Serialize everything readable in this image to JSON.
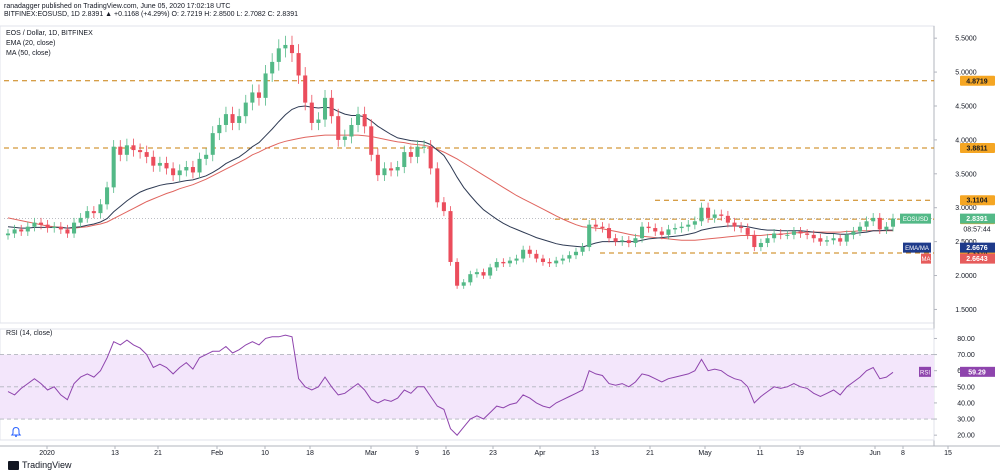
{
  "header": {
    "author": "ranadagger",
    "published": "published on TradingView.com, June 05, 2020 17:02:18 UTC",
    "symbol_line": "BITFINEX:EOSUSD, 1D",
    "quote": "2.8391 ▲ +0.1168 (+4.29%) O: 2.7219 H: 2.8500 L: 2.7082 C: 2.8391"
  },
  "legend": {
    "title": "EOS / Dollar, 1D, BITFINEX",
    "ema": "EMA (20, close)",
    "ma": "MA (50, close)",
    "rsi": "RSI (14, close)"
  },
  "footer": {
    "brand": "TradingView"
  },
  "colors": {
    "up": "#53b987",
    "down": "#eb4d5c",
    "ema": "#2f3b54",
    "ma": "#e0655f",
    "rsi": "#8e44ad",
    "rsi_band": "#f3e6fb",
    "level": "#c87f0a",
    "price_badge": "#53b987",
    "ema_badge": "#1e3a8a",
    "ma_badge": "#e65c5c",
    "level_badge": "#f5a623"
  },
  "chart_data": [
    {
      "type": "candlestick",
      "title": "EOS / Dollar, 1D, BITFINEX",
      "x_ticks": [
        "2020",
        "13",
        "21",
        "Feb",
        "10",
        "18",
        "Mar",
        "9",
        "16",
        "23",
        "Apr",
        "13",
        "21",
        "May",
        "11",
        "19",
        "Jun",
        "8",
        "15"
      ],
      "y_ticks": [
        "1.5000",
        "2.0000",
        "2.5000",
        "3.0000",
        "3.5000",
        "4.0000",
        "4.5000",
        "5.0000",
        "5.5000"
      ],
      "ylim": [
        1.3,
        5.65
      ],
      "horizontal_levels": [
        {
          "label": "4.8719",
          "value": 4.8719
        },
        {
          "label": "3.8811",
          "value": 3.8811
        },
        {
          "label": "3.1104",
          "value": 3.1104
        },
        {
          "label": "2.8319",
          "value": 2.8319
        },
        {
          "label": "2.3314",
          "value": 2.3314
        }
      ],
      "price_labels": [
        {
          "label": "EOSUSD",
          "value": "2.8391",
          "level": 2.8391,
          "sub": "08:57:44"
        },
        {
          "label": "EMA/MA",
          "value": "2.6676",
          "level": 2.6676
        },
        {
          "label": "MA",
          "value": "2.6643",
          "level": 2.6643
        }
      ],
      "series": [
        {
          "name": "EOS / Dollar",
          "values": [
            2.62,
            2.68,
            2.65,
            2.72,
            2.78,
            2.75,
            2.7,
            2.72,
            2.68,
            2.62,
            2.78,
            2.85,
            2.95,
            2.92,
            3.05,
            3.3,
            3.9,
            3.78,
            3.92,
            3.85,
            3.82,
            3.75,
            3.62,
            3.66,
            3.58,
            3.48,
            3.55,
            3.6,
            3.52,
            3.72,
            3.78,
            4.1,
            4.22,
            4.38,
            4.25,
            4.35,
            4.55,
            4.7,
            4.62,
            4.98,
            5.15,
            5.35,
            5.4,
            5.28,
            4.95,
            4.55,
            4.25,
            4.3,
            4.62,
            4.35,
            4.0,
            4.05,
            4.22,
            4.38,
            4.2,
            3.78,
            3.48,
            3.58,
            3.55,
            3.6,
            3.82,
            3.75,
            3.9,
            3.9,
            3.58,
            3.08,
            2.95,
            2.2,
            1.85,
            1.9,
            2.02,
            2.05,
            2.0,
            2.12,
            2.2,
            2.18,
            2.22,
            2.25,
            2.38,
            2.32,
            2.25,
            2.2,
            2.18,
            2.22,
            2.25,
            2.3,
            2.35,
            2.42,
            2.75,
            2.72,
            2.7,
            2.55,
            2.5,
            2.52,
            2.48,
            2.55,
            2.72,
            2.7,
            2.65,
            2.6,
            2.68,
            2.7,
            2.72,
            2.75,
            2.8,
            3.0,
            2.85,
            2.9,
            2.88,
            2.78,
            2.72,
            2.7,
            2.6,
            2.42,
            2.48,
            2.55,
            2.62,
            2.6,
            2.6,
            2.65,
            2.62,
            2.6,
            2.55,
            2.5,
            2.52,
            2.55,
            2.5,
            2.6,
            2.65,
            2.72,
            2.8,
            2.85,
            2.68,
            2.72,
            2.84
          ]
        },
        {
          "name": "EMA (20, close)",
          "values": [
            2.72,
            2.71,
            2.7,
            2.7,
            2.71,
            2.71,
            2.71,
            2.71,
            2.71,
            2.7,
            2.71,
            2.72,
            2.74,
            2.76,
            2.79,
            2.84,
            2.94,
            3.02,
            3.1,
            3.17,
            3.23,
            3.27,
            3.3,
            3.33,
            3.35,
            3.36,
            3.38,
            3.4,
            3.41,
            3.44,
            3.47,
            3.52,
            3.58,
            3.65,
            3.7,
            3.75,
            3.82,
            3.9,
            3.96,
            4.06,
            4.16,
            4.27,
            4.37,
            4.45,
            4.49,
            4.5,
            4.48,
            4.47,
            4.48,
            4.47,
            4.42,
            4.38,
            4.36,
            4.36,
            4.34,
            4.28,
            4.2,
            4.14,
            4.08,
            4.03,
            4.01,
            3.99,
            3.98,
            3.97,
            3.93,
            3.85,
            3.77,
            3.62,
            3.45,
            3.3,
            3.18,
            3.07,
            2.97,
            2.9,
            2.83,
            2.77,
            2.72,
            2.68,
            2.64,
            2.6,
            2.56,
            2.53,
            2.5,
            2.47,
            2.45,
            2.44,
            2.43,
            2.42,
            2.45,
            2.48,
            2.5,
            2.5,
            2.5,
            2.5,
            2.5,
            2.5,
            2.52,
            2.54,
            2.55,
            2.56,
            2.57,
            2.58,
            2.59,
            2.61,
            2.63,
            2.67,
            2.69,
            2.71,
            2.72,
            2.73,
            2.73,
            2.73,
            2.72,
            2.7,
            2.68,
            2.67,
            2.67,
            2.66,
            2.66,
            2.66,
            2.66,
            2.65,
            2.64,
            2.63,
            2.62,
            2.62,
            2.61,
            2.61,
            2.62,
            2.63,
            2.64,
            2.66,
            2.66,
            2.67,
            2.67
          ]
        },
        {
          "name": "MA (50, close)",
          "values": [
            2.85,
            2.83,
            2.81,
            2.79,
            2.77,
            2.75,
            2.73,
            2.72,
            2.71,
            2.7,
            2.7,
            2.71,
            2.72,
            2.74,
            2.76,
            2.79,
            2.84,
            2.89,
            2.94,
            2.99,
            3.04,
            3.09,
            3.13,
            3.17,
            3.21,
            3.24,
            3.28,
            3.31,
            3.34,
            3.38,
            3.42,
            3.47,
            3.52,
            3.57,
            3.62,
            3.67,
            3.72,
            3.78,
            3.82,
            3.87,
            3.91,
            3.95,
            3.98,
            4.0,
            4.02,
            4.04,
            4.05,
            4.06,
            4.07,
            4.07,
            4.07,
            4.07,
            4.07,
            4.07,
            4.06,
            4.05,
            4.03,
            4.01,
            3.99,
            3.97,
            3.96,
            3.94,
            3.93,
            3.92,
            3.9,
            3.86,
            3.82,
            3.77,
            3.72,
            3.66,
            3.6,
            3.54,
            3.48,
            3.42,
            3.36,
            3.3,
            3.24,
            3.18,
            3.13,
            3.08,
            3.03,
            2.98,
            2.93,
            2.88,
            2.83,
            2.79,
            2.75,
            2.72,
            2.71,
            2.7,
            2.69,
            2.67,
            2.65,
            2.63,
            2.61,
            2.59,
            2.58,
            2.57,
            2.56,
            2.55,
            2.54,
            2.53,
            2.52,
            2.52,
            2.52,
            2.53,
            2.54,
            2.55,
            2.56,
            2.57,
            2.58,
            2.59,
            2.59,
            2.59,
            2.59,
            2.6,
            2.61,
            2.61,
            2.62,
            2.63,
            2.63,
            2.64,
            2.64,
            2.64,
            2.64,
            2.64,
            2.64,
            2.65,
            2.65,
            2.66,
            2.66,
            2.66,
            2.66,
            2.66,
            2.66
          ]
        }
      ]
    },
    {
      "type": "line",
      "title": "RSI (14, close)",
      "y_ticks": [
        "20.00",
        "30.00",
        "40.00",
        "50.00",
        "60.00",
        "70.00",
        "80.00"
      ],
      "ylim": [
        17,
        84
      ],
      "band": [
        30,
        70
      ],
      "midline": 50,
      "price_labels": [
        {
          "label": "RSI",
          "value": "59.29",
          "level": 59.29
        }
      ],
      "series": [
        {
          "name": "RSI (14, close)",
          "values": [
            47,
            45,
            49,
            52,
            55,
            52,
            48,
            50,
            45,
            42,
            52,
            56,
            58,
            56,
            60,
            68,
            78,
            76,
            79,
            76,
            74,
            70,
            62,
            64,
            62,
            58,
            62,
            65,
            61,
            68,
            70,
            72,
            72,
            75,
            71,
            73,
            76,
            78,
            76,
            80,
            81,
            81,
            82,
            81,
            55,
            50,
            48,
            50,
            56,
            50,
            45,
            46,
            49,
            52,
            48,
            42,
            40,
            42,
            41,
            43,
            48,
            46,
            50,
            50,
            44,
            38,
            36,
            24,
            20,
            25,
            30,
            32,
            30,
            34,
            38,
            37,
            39,
            40,
            45,
            43,
            40,
            38,
            37,
            40,
            42,
            44,
            46,
            48,
            60,
            58,
            57,
            52,
            51,
            52,
            50,
            53,
            58,
            57,
            55,
            53,
            55,
            56,
            57,
            58,
            60,
            67,
            60,
            61,
            60,
            57,
            55,
            54,
            50,
            40,
            44,
            47,
            50,
            49,
            50,
            52,
            50,
            49,
            46,
            44,
            46,
            48,
            45,
            50,
            53,
            56,
            60,
            62,
            55,
            56,
            59
          ]
        }
      ]
    }
  ]
}
